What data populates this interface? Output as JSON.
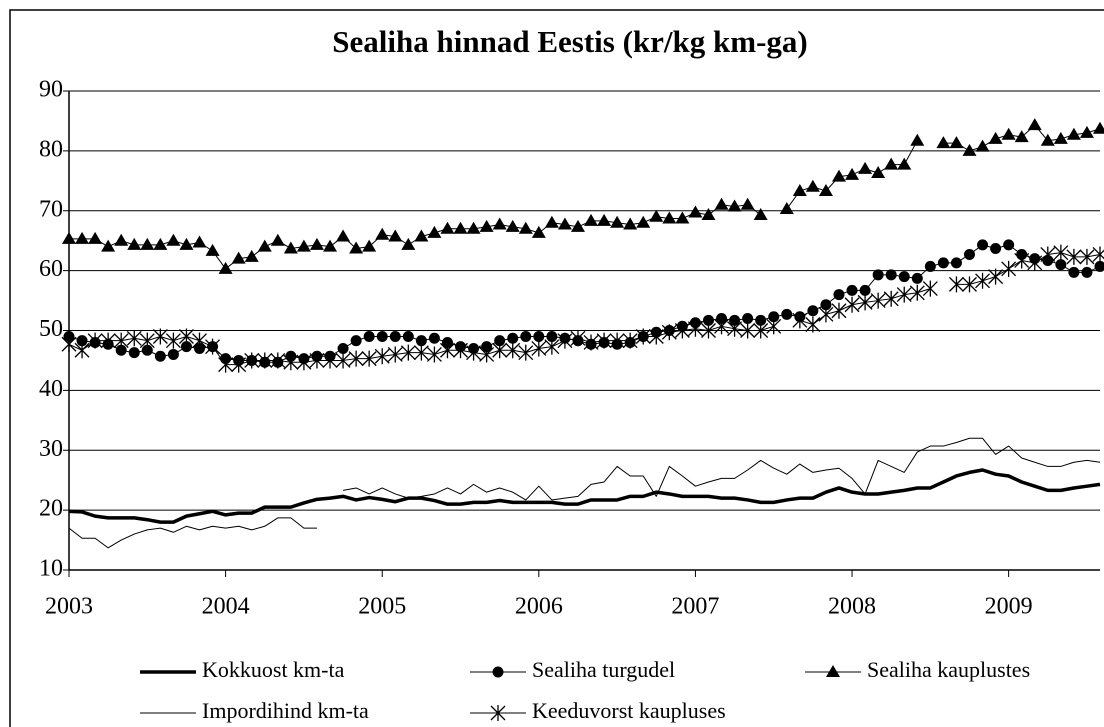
{
  "chart_data": {
    "type": "line",
    "title": "Sealiha hinnad Eestis (kr/kg km-ga)",
    "categories": [
      "2003",
      null,
      null,
      null,
      null,
      null,
      null,
      null,
      null,
      null,
      null,
      null,
      "2004",
      null,
      null,
      null,
      null,
      null,
      null,
      null,
      null,
      null,
      null,
      null,
      "2005",
      null,
      null,
      null,
      null,
      null,
      null,
      null,
      null,
      null,
      null,
      null,
      "2006",
      null,
      null,
      null,
      null,
      null,
      null,
      null,
      null,
      null,
      null,
      null,
      "2007",
      null,
      null,
      null,
      null,
      null,
      null,
      null,
      null,
      null,
      null,
      null,
      "2008",
      null,
      null,
      null,
      null,
      null,
      null,
      null,
      null,
      null,
      null,
      null,
      "2009",
      null,
      null,
      null,
      null,
      null,
      null,
      null
    ],
    "ylim": [
      10,
      90
    ],
    "yticks": [
      10,
      20,
      30,
      40,
      50,
      60,
      70,
      80,
      90
    ],
    "grid": true,
    "series": [
      {
        "name": "Kokkuost km-ta",
        "color": "#000000",
        "line_width": 3.5,
        "marker": "none",
        "values": [
          19.8,
          19.7,
          19,
          18.7,
          18.7,
          18.7,
          18.4,
          18,
          18,
          19,
          19.4,
          19.8,
          19.2,
          19.5,
          19.5,
          20.5,
          20.5,
          20.5,
          21.2,
          21.8,
          22,
          22.3,
          21.7,
          22.1,
          21.8,
          21.4,
          22,
          22,
          21.6,
          21,
          21,
          21.3,
          21.3,
          21.6,
          21.3,
          21.3,
          21.3,
          21.3,
          21,
          21,
          21.7,
          21.7,
          21.7,
          22.3,
          22.3,
          23,
          22.7,
          22.3,
          22.3,
          22.3,
          22,
          22,
          21.7,
          21.3,
          21.3,
          21.7,
          22,
          22,
          23,
          23.7,
          23,
          22.7,
          22.7,
          23,
          23.3,
          23.7,
          23.7,
          24.7,
          25.7,
          26.3,
          26.7,
          26,
          25.7,
          24.7,
          24,
          23.3,
          23.3,
          23.7,
          24,
          24.3
        ]
      },
      {
        "name": "Sealiha turgudel",
        "color": "#000000",
        "line_width": 1,
        "marker": "circle",
        "values": [
          49,
          48.3,
          48,
          47.7,
          46.7,
          46.3,
          46.7,
          45.7,
          46,
          47.3,
          47,
          47.3,
          45.3,
          45,
          45,
          44.7,
          44.7,
          45.7,
          45.3,
          45.7,
          45.7,
          47,
          48.3,
          49,
          49,
          49,
          49,
          48.3,
          48.7,
          48,
          47.3,
          47,
          47.3,
          48.3,
          48.7,
          49,
          49,
          49,
          48.7,
          48.3,
          47.7,
          48,
          47.7,
          48,
          49,
          49.7,
          50,
          50.7,
          51.3,
          51.7,
          52,
          51.7,
          52,
          51.7,
          52.3,
          52.7,
          52.3,
          53.3,
          54.3,
          56,
          56.7,
          56.7,
          59.3,
          59.3,
          59,
          58.7,
          60.7,
          61.3,
          61.3,
          62.7,
          64.3,
          63.7,
          64.3,
          62.7,
          62,
          61.7,
          61,
          59.7,
          59.7,
          60.7
        ]
      },
      {
        "name": "Sealiha kauplustes",
        "color": "#000000",
        "line_width": 1,
        "marker": "triangle",
        "values": [
          65.3,
          65.3,
          65.3,
          64,
          65,
          64.3,
          64.3,
          64.3,
          65,
          64.3,
          64.7,
          63.3,
          60.3,
          62,
          62.3,
          64,
          65,
          63.7,
          64,
          64.3,
          64,
          65.7,
          63.7,
          64,
          66,
          65.7,
          64.3,
          65.7,
          66.3,
          67,
          67,
          67,
          67.3,
          67.7,
          67.3,
          67,
          66.3,
          68,
          67.7,
          67.3,
          68.3,
          68.3,
          68,
          67.7,
          68,
          69,
          68.7,
          68.7,
          69.7,
          69.3,
          71,
          70.7,
          71,
          69.3,
          null,
          70.3,
          73.3,
          74,
          73.3,
          75.7,
          76,
          77,
          76.3,
          77.7,
          77.7,
          81.7,
          null,
          81.3,
          81.3,
          80,
          80.7,
          82,
          82.7,
          82.3,
          84.3,
          81.7,
          82,
          82.7,
          83,
          83.7
        ]
      },
      {
        "name": "Impordihind km-ta",
        "color": "#000000",
        "line_width": 1,
        "marker": "none",
        "values": [
          17,
          15.3,
          15.3,
          13.7,
          15,
          16,
          16.7,
          17,
          16.3,
          17.3,
          16.7,
          17.3,
          17,
          17.3,
          16.7,
          17.3,
          18.7,
          18.7,
          17,
          17,
          null,
          23.3,
          23.7,
          22.7,
          23.7,
          22.7,
          22,
          22.3,
          22.7,
          23.7,
          22.7,
          24.3,
          23,
          23.7,
          23,
          21.7,
          24,
          21.7,
          22,
          22.3,
          24.3,
          24.7,
          27.3,
          25.7,
          25.7,
          22.3,
          27.3,
          25.7,
          24,
          24.7,
          25.3,
          25.3,
          26.7,
          28.3,
          27,
          26,
          27.7,
          26.3,
          26.7,
          27,
          25.3,
          22.7,
          28.3,
          27.3,
          26.3,
          29.7,
          30.7,
          30.7,
          31.3,
          32,
          32,
          29.3,
          30.7,
          28.7,
          28,
          27.3,
          27.3,
          28,
          28.3,
          28
        ]
      },
      {
        "name": "Keeduvorst kaupluses",
        "color": "#000000",
        "line_width": 1,
        "marker": "star",
        "values": [
          47.7,
          46.7,
          48.3,
          48.3,
          48.3,
          48.7,
          48.3,
          49,
          48.3,
          49,
          48.3,
          47.3,
          44.3,
          44.3,
          45,
          45,
          45,
          44.7,
          44.7,
          45,
          45,
          45,
          45.3,
          45.3,
          45.7,
          46,
          46.3,
          46.3,
          46,
          46.7,
          46.7,
          46.3,
          46,
          46.7,
          46.7,
          46.3,
          47,
          47.3,
          48.3,
          48.7,
          48,
          48.3,
          48.3,
          48.3,
          49,
          49,
          49.7,
          50,
          50.3,
          50,
          50.7,
          50.3,
          50,
          50,
          50.7,
          null,
          51.7,
          51,
          52.7,
          53.3,
          54.3,
          54.7,
          55,
          55.3,
          56,
          56.3,
          57,
          null,
          57.7,
          57.7,
          58.3,
          59,
          60.3,
          61.7,
          61.3,
          62.7,
          63,
          62.3,
          62.3,
          62.7
        ]
      }
    ]
  }
}
